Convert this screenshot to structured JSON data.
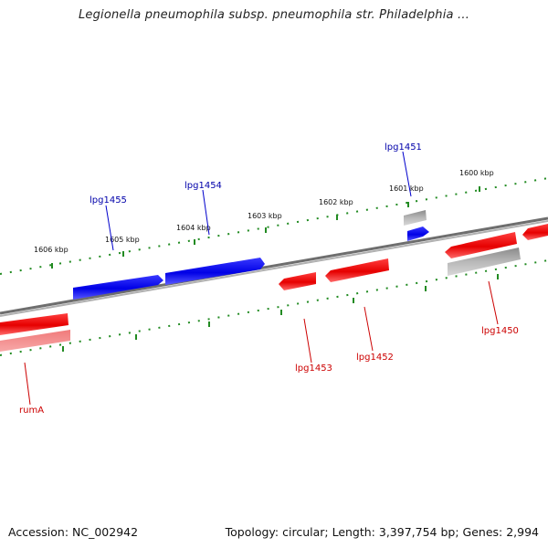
{
  "title": "Legionella pneumophila subsp. pneumophila str. Philadelphia ...",
  "footer": {
    "accession": "Accession: NC_002942",
    "summary": "Topology: circular; Length: 3,397,754 bp; Genes: 2,994"
  },
  "colors": {
    "plus_strand_gene": "#0000ee",
    "minus_strand_gene": "#ee0000",
    "pseudo_gene": "#aaaaaa",
    "backbone": "#808080",
    "tick": "#228b22",
    "plus_label": "#0000aa",
    "minus_label": "#cc0000"
  },
  "scale_labels": [
    "1606 kbp",
    "1605 kbp",
    "1604 kbp",
    "1603 kbp",
    "1602 kbp",
    "1601 kbp",
    "1600 kbp"
  ],
  "genes": [
    {
      "name": "lpg1455",
      "strand": "+"
    },
    {
      "name": "lpg1454",
      "strand": "+"
    },
    {
      "name": "lpg1451",
      "strand": "+"
    },
    {
      "name": "rumA",
      "strand": "-"
    },
    {
      "name": "lpg1453",
      "strand": "-"
    },
    {
      "name": "lpg1452",
      "strand": "-"
    },
    {
      "name": "lpg1450",
      "strand": "-"
    }
  ]
}
